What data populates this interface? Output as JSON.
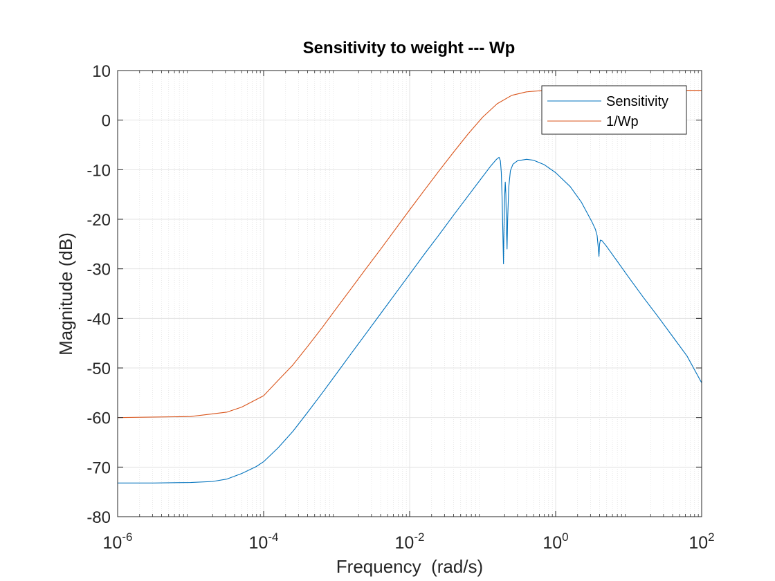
{
  "chart_data": {
    "type": "line",
    "title": "Sensitivity to weight --- Wp",
    "xlabel": "Frequency  (rad/s)",
    "ylabel": "Magnitude (dB)",
    "x_scale": "log",
    "xlim": [
      1e-06,
      100
    ],
    "ylim": [
      -80,
      10
    ],
    "grid": true,
    "minor_grid_x": true,
    "x_ticks": [
      {
        "value": 1e-06,
        "base": "10",
        "exp": "-6"
      },
      {
        "value": 0.0001,
        "base": "10",
        "exp": "-4"
      },
      {
        "value": 0.01,
        "base": "10",
        "exp": "-2"
      },
      {
        "value": 1,
        "base": "10",
        "exp": "0"
      },
      {
        "value": 100,
        "base": "10",
        "exp": "2"
      }
    ],
    "y_ticks": [
      {
        "value": 10,
        "label": "10"
      },
      {
        "value": 0,
        "label": "0"
      },
      {
        "value": -10,
        "label": "-10"
      },
      {
        "value": -20,
        "label": "-20"
      },
      {
        "value": -30,
        "label": "-30"
      },
      {
        "value": -40,
        "label": "-40"
      },
      {
        "value": -50,
        "label": "-50"
      },
      {
        "value": -60,
        "label": "-60"
      },
      {
        "value": -70,
        "label": "-70"
      },
      {
        "value": -80,
        "label": "-80"
      }
    ],
    "legend_position": "top-right",
    "series": [
      {
        "name": "Sensitivity",
        "color": "#0072BD",
        "points": [
          [
            1e-06,
            -73.2
          ],
          [
            3.16e-06,
            -73.2
          ],
          [
            1e-05,
            -73.1
          ],
          [
            2e-05,
            -72.9
          ],
          [
            3.16e-05,
            -72.4
          ],
          [
            5e-05,
            -71.3
          ],
          [
            7.9e-05,
            -69.9
          ],
          [
            0.0001,
            -68.9
          ],
          [
            0.000158,
            -66.1
          ],
          [
            0.000251,
            -62.8
          ],
          [
            0.000398,
            -59.0
          ],
          [
            0.000631,
            -55.1
          ],
          [
            0.001,
            -51.1
          ],
          [
            0.00158,
            -47.1
          ],
          [
            0.00251,
            -43.1
          ],
          [
            0.00398,
            -39.1
          ],
          [
            0.00631,
            -35.1
          ],
          [
            0.01,
            -31.1
          ],
          [
            0.0158,
            -27.1
          ],
          [
            0.0251,
            -23.2
          ],
          [
            0.0398,
            -19.2
          ],
          [
            0.0631,
            -15.3
          ],
          [
            0.1,
            -11.4
          ],
          [
            0.13,
            -9.2
          ],
          [
            0.155,
            -7.9
          ],
          [
            0.168,
            -7.5
          ],
          [
            0.175,
            -8.2
          ],
          [
            0.18,
            -10.5
          ],
          [
            0.185,
            -16.0
          ],
          [
            0.19,
            -24.0
          ],
          [
            0.193,
            -29.0
          ],
          [
            0.196,
            -22.0
          ],
          [
            0.2,
            -15.5
          ],
          [
            0.204,
            -12.5
          ],
          [
            0.208,
            -15.0
          ],
          [
            0.212,
            -22.0
          ],
          [
            0.216,
            -26.0
          ],
          [
            0.22,
            -20.0
          ],
          [
            0.228,
            -13.5
          ],
          [
            0.24,
            -10.2
          ],
          [
            0.26,
            -8.9
          ],
          [
            0.3,
            -8.2
          ],
          [
            0.4,
            -7.9
          ],
          [
            0.5,
            -8.1
          ],
          [
            0.7,
            -9.0
          ],
          [
            1,
            -10.6
          ],
          [
            1.58,
            -13.4
          ],
          [
            2.24,
            -16.5
          ],
          [
            3.16,
            -20.6
          ],
          [
            3.5,
            -22.0
          ],
          [
            3.7,
            -23.3
          ],
          [
            3.85,
            -26.0
          ],
          [
            3.92,
            -27.5
          ],
          [
            4.0,
            -25.0
          ],
          [
            4.1,
            -24.2
          ],
          [
            4.3,
            -24.3
          ],
          [
            5,
            -25.5
          ],
          [
            7.08,
            -28.6
          ],
          [
            10,
            -31.7
          ],
          [
            15.8,
            -35.7
          ],
          [
            25.1,
            -39.6
          ],
          [
            39.8,
            -43.6
          ],
          [
            63.1,
            -47.6
          ],
          [
            100,
            -53.0
          ]
        ]
      },
      {
        "name": "1/Wp",
        "color": "#D95319",
        "points": [
          [
            1e-06,
            -60.0
          ],
          [
            1e-05,
            -59.8
          ],
          [
            3.16e-05,
            -58.9
          ],
          [
            5e-05,
            -57.9
          ],
          [
            0.0001,
            -55.6
          ],
          [
            0.000158,
            -52.5
          ],
          [
            0.000251,
            -49.4
          ],
          [
            0.000398,
            -45.7
          ],
          [
            0.000631,
            -41.9
          ],
          [
            0.001,
            -37.9
          ],
          [
            0.00158,
            -34.0
          ],
          [
            0.00251,
            -30.0
          ],
          [
            0.00398,
            -26.1
          ],
          [
            0.00631,
            -22.1
          ],
          [
            0.01,
            -18.1
          ],
          [
            0.0158,
            -14.2
          ],
          [
            0.0251,
            -10.3
          ],
          [
            0.0398,
            -6.5
          ],
          [
            0.0631,
            -2.8
          ],
          [
            0.1,
            0.6
          ],
          [
            0.158,
            3.3
          ],
          [
            0.251,
            5.0
          ],
          [
            0.398,
            5.7
          ],
          [
            0.631,
            5.95
          ],
          [
            1,
            6.0
          ],
          [
            10,
            6.0
          ],
          [
            100,
            6.0
          ]
        ]
      }
    ]
  }
}
